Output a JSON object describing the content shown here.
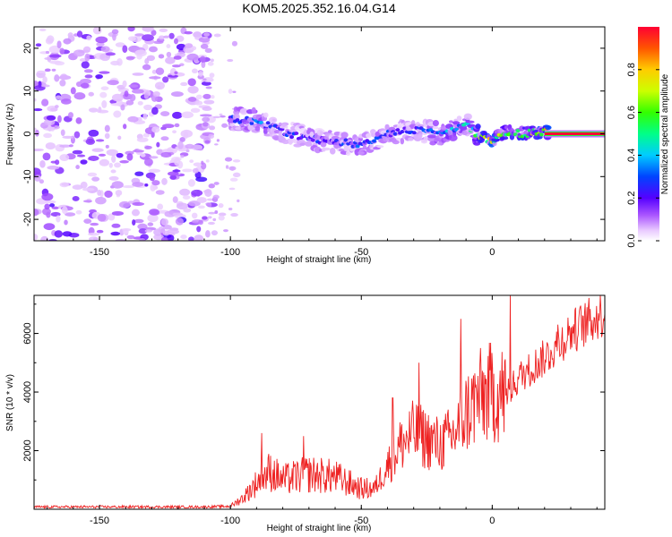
{
  "title": "KOM5.2025.352.16.04.G14",
  "chart_data": [
    {
      "type": "heatmap",
      "title": "KOM5.2025.352.16.04.G14",
      "xlabel": "Height of straight line (km)",
      "ylabel": "Frequency (Hz)",
      "xlim": [
        -175,
        43
      ],
      "ylim": [
        -25,
        25
      ],
      "xticks": [
        -150,
        -100,
        -50,
        0
      ],
      "yticks": [
        -20,
        -10,
        0,
        10,
        20
      ],
      "colorbar": {
        "label": "Normalized spectral amplitude",
        "range": [
          0,
          1
        ],
        "ticks": [
          0.0,
          0.2,
          0.4,
          0.6,
          0.8
        ],
        "tick_labels": [
          "0.0",
          "0.2",
          "0.4",
          "0.6",
          "0.8"
        ],
        "colormap": "rainbow (white-violet-blue-cyan-green-yellow-red)"
      },
      "ridge": [
        {
          "x": -100,
          "f": 3.5,
          "amp": 0.3
        },
        {
          "x": -90,
          "f": 3.0,
          "amp": 0.4
        },
        {
          "x": -80,
          "f": 0.5,
          "amp": 0.3
        },
        {
          "x": -70,
          "f": -1.0,
          "amp": 0.3
        },
        {
          "x": -60,
          "f": -2.0,
          "amp": 0.3
        },
        {
          "x": -50,
          "f": -2.5,
          "amp": 0.35
        },
        {
          "x": -40,
          "f": 0.0,
          "amp": 0.3
        },
        {
          "x": -30,
          "f": 1.0,
          "amp": 0.3
        },
        {
          "x": -20,
          "f": 0.0,
          "amp": 0.4
        },
        {
          "x": -10,
          "f": 2.0,
          "amp": 0.5
        },
        {
          "x": -5,
          "f": -0.5,
          "amp": 0.7
        },
        {
          "x": 0,
          "f": -1.5,
          "amp": 0.85
        },
        {
          "x": 5,
          "f": 0.5,
          "amp": 0.6
        },
        {
          "x": 10,
          "f": 0.0,
          "amp": 0.7
        },
        {
          "x": 20,
          "f": 0.5,
          "amp": 0.85
        },
        {
          "x": 30,
          "f": 0.0,
          "amp": 1.0
        },
        {
          "x": 43,
          "f": 0.0,
          "amp": 1.0
        }
      ]
    },
    {
      "type": "line",
      "xlabel": "Height of straight line (km)",
      "ylabel": "SNR (10 * v/v)",
      "xlim": [
        -175,
        43
      ],
      "ylim": [
        0,
        7300
      ],
      "xticks": [
        -150,
        -100,
        -50,
        0
      ],
      "yticks": [
        2000,
        4000,
        6000
      ],
      "color": "#ee2222",
      "envelope": [
        {
          "x": -175,
          "y": 80
        },
        {
          "x": -110,
          "y": 80
        },
        {
          "x": -100,
          "y": 100
        },
        {
          "x": -95,
          "y": 400
        },
        {
          "x": -90,
          "y": 900
        },
        {
          "x": -85,
          "y": 1300
        },
        {
          "x": -80,
          "y": 1000
        },
        {
          "x": -70,
          "y": 1200
        },
        {
          "x": -60,
          "y": 1100
        },
        {
          "x": -55,
          "y": 900
        },
        {
          "x": -50,
          "y": 700
        },
        {
          "x": -45,
          "y": 700
        },
        {
          "x": -40,
          "y": 1500
        },
        {
          "x": -35,
          "y": 2200
        },
        {
          "x": -30,
          "y": 2600
        },
        {
          "x": -25,
          "y": 2400
        },
        {
          "x": -20,
          "y": 2200
        },
        {
          "x": -15,
          "y": 2500
        },
        {
          "x": -10,
          "y": 3300
        },
        {
          "x": -5,
          "y": 3800
        },
        {
          "x": 0,
          "y": 4000
        },
        {
          "x": 5,
          "y": 3900
        },
        {
          "x": 10,
          "y": 4600
        },
        {
          "x": 20,
          "y": 5300
        },
        {
          "x": 30,
          "y": 6200
        },
        {
          "x": 43,
          "y": 6900
        }
      ],
      "peaks": [
        {
          "x": -88,
          "y": 2600
        },
        {
          "x": -72,
          "y": 2500
        },
        {
          "x": -38,
          "y": 3800
        },
        {
          "x": -28,
          "y": 5000
        },
        {
          "x": -12,
          "y": 6500
        },
        {
          "x": 7,
          "y": 7300
        },
        {
          "x": 25,
          "y": 6300
        }
      ]
    }
  ]
}
